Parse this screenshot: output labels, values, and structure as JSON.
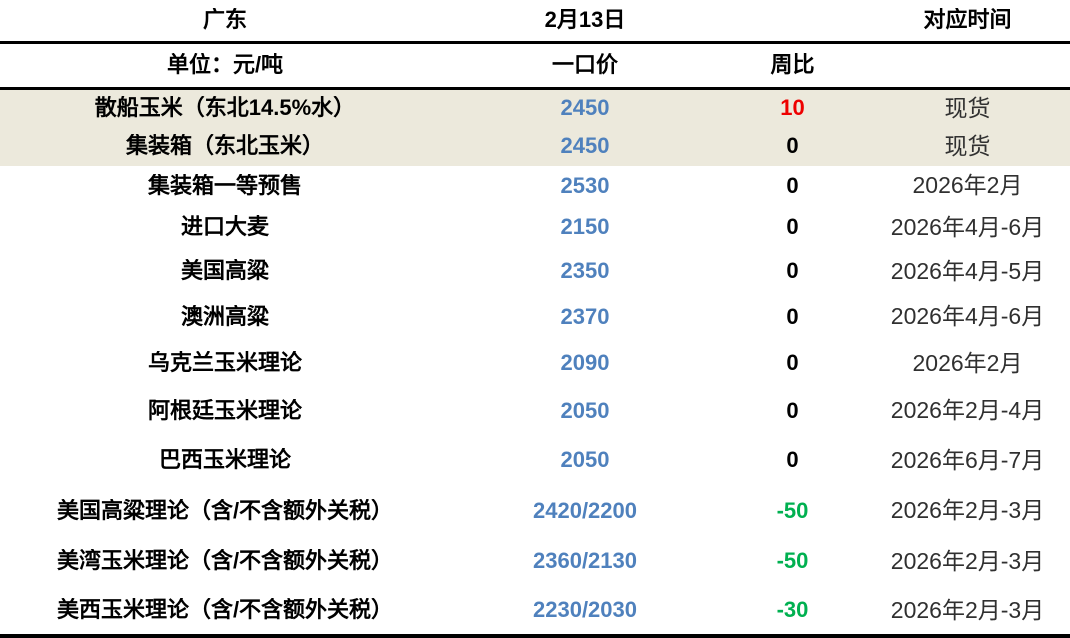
{
  "colors": {
    "price_blue": "#4f81bd",
    "up_red": "#ee0000",
    "down_green": "#00b050",
    "highlight_bg": "#ece9dc"
  },
  "table": {
    "header": {
      "region": "广东",
      "date": "2月13日",
      "time_label": "对应时间",
      "unit": "单位：元/吨",
      "price_label": "一口价",
      "week_label": "周比"
    },
    "rows": [
      {
        "name": "散船玉米（东北14.5%水）",
        "price": "2450",
        "change": "10",
        "trend": "up",
        "time": "现货",
        "highlight": true
      },
      {
        "name": "集装箱（东北玉米）",
        "price": "2450",
        "change": "0",
        "trend": "flat",
        "time": "现货",
        "highlight": true
      },
      {
        "name": "集装箱一等预售",
        "price": "2530",
        "change": "0",
        "trend": "flat",
        "time": "2026年2月",
        "highlight": false
      },
      {
        "name": "进口大麦",
        "price": "2150",
        "change": "0",
        "trend": "flat",
        "time": "2026年4月-6月",
        "highlight": false
      },
      {
        "name": "美国高粱",
        "price": "2350",
        "change": "0",
        "trend": "flat",
        "time": "2026年4月-5月",
        "highlight": false
      },
      {
        "name": "澳洲高粱",
        "price": "2370",
        "change": "0",
        "trend": "flat",
        "time": "2026年4月-6月",
        "highlight": false
      },
      {
        "name": "乌克兰玉米理论",
        "price": "2090",
        "change": "0",
        "trend": "flat",
        "time": "2026年2月",
        "highlight": false
      },
      {
        "name": "阿根廷玉米理论",
        "price": "2050",
        "change": "0",
        "trend": "flat",
        "time": "2026年2月-4月",
        "highlight": false
      },
      {
        "name": "巴西玉米理论",
        "price": "2050",
        "change": "0",
        "trend": "flat",
        "time": "2026年6月-7月",
        "highlight": false
      },
      {
        "name": "美国高粱理论（含/不含额外关税）",
        "price": "2420/2200",
        "change": "-50",
        "trend": "down",
        "time": "2026年2月-3月",
        "highlight": false
      },
      {
        "name": "美湾玉米理论（含/不含额外关税）",
        "price": "2360/2130",
        "change": "-50",
        "trend": "down",
        "time": "2026年2月-3月",
        "highlight": false
      },
      {
        "name": "美西玉米理论（含/不含额外关税）",
        "price": "2230/2030",
        "change": "-30",
        "trend": "down",
        "time": "2026年2月-3月",
        "highlight": false
      }
    ]
  }
}
